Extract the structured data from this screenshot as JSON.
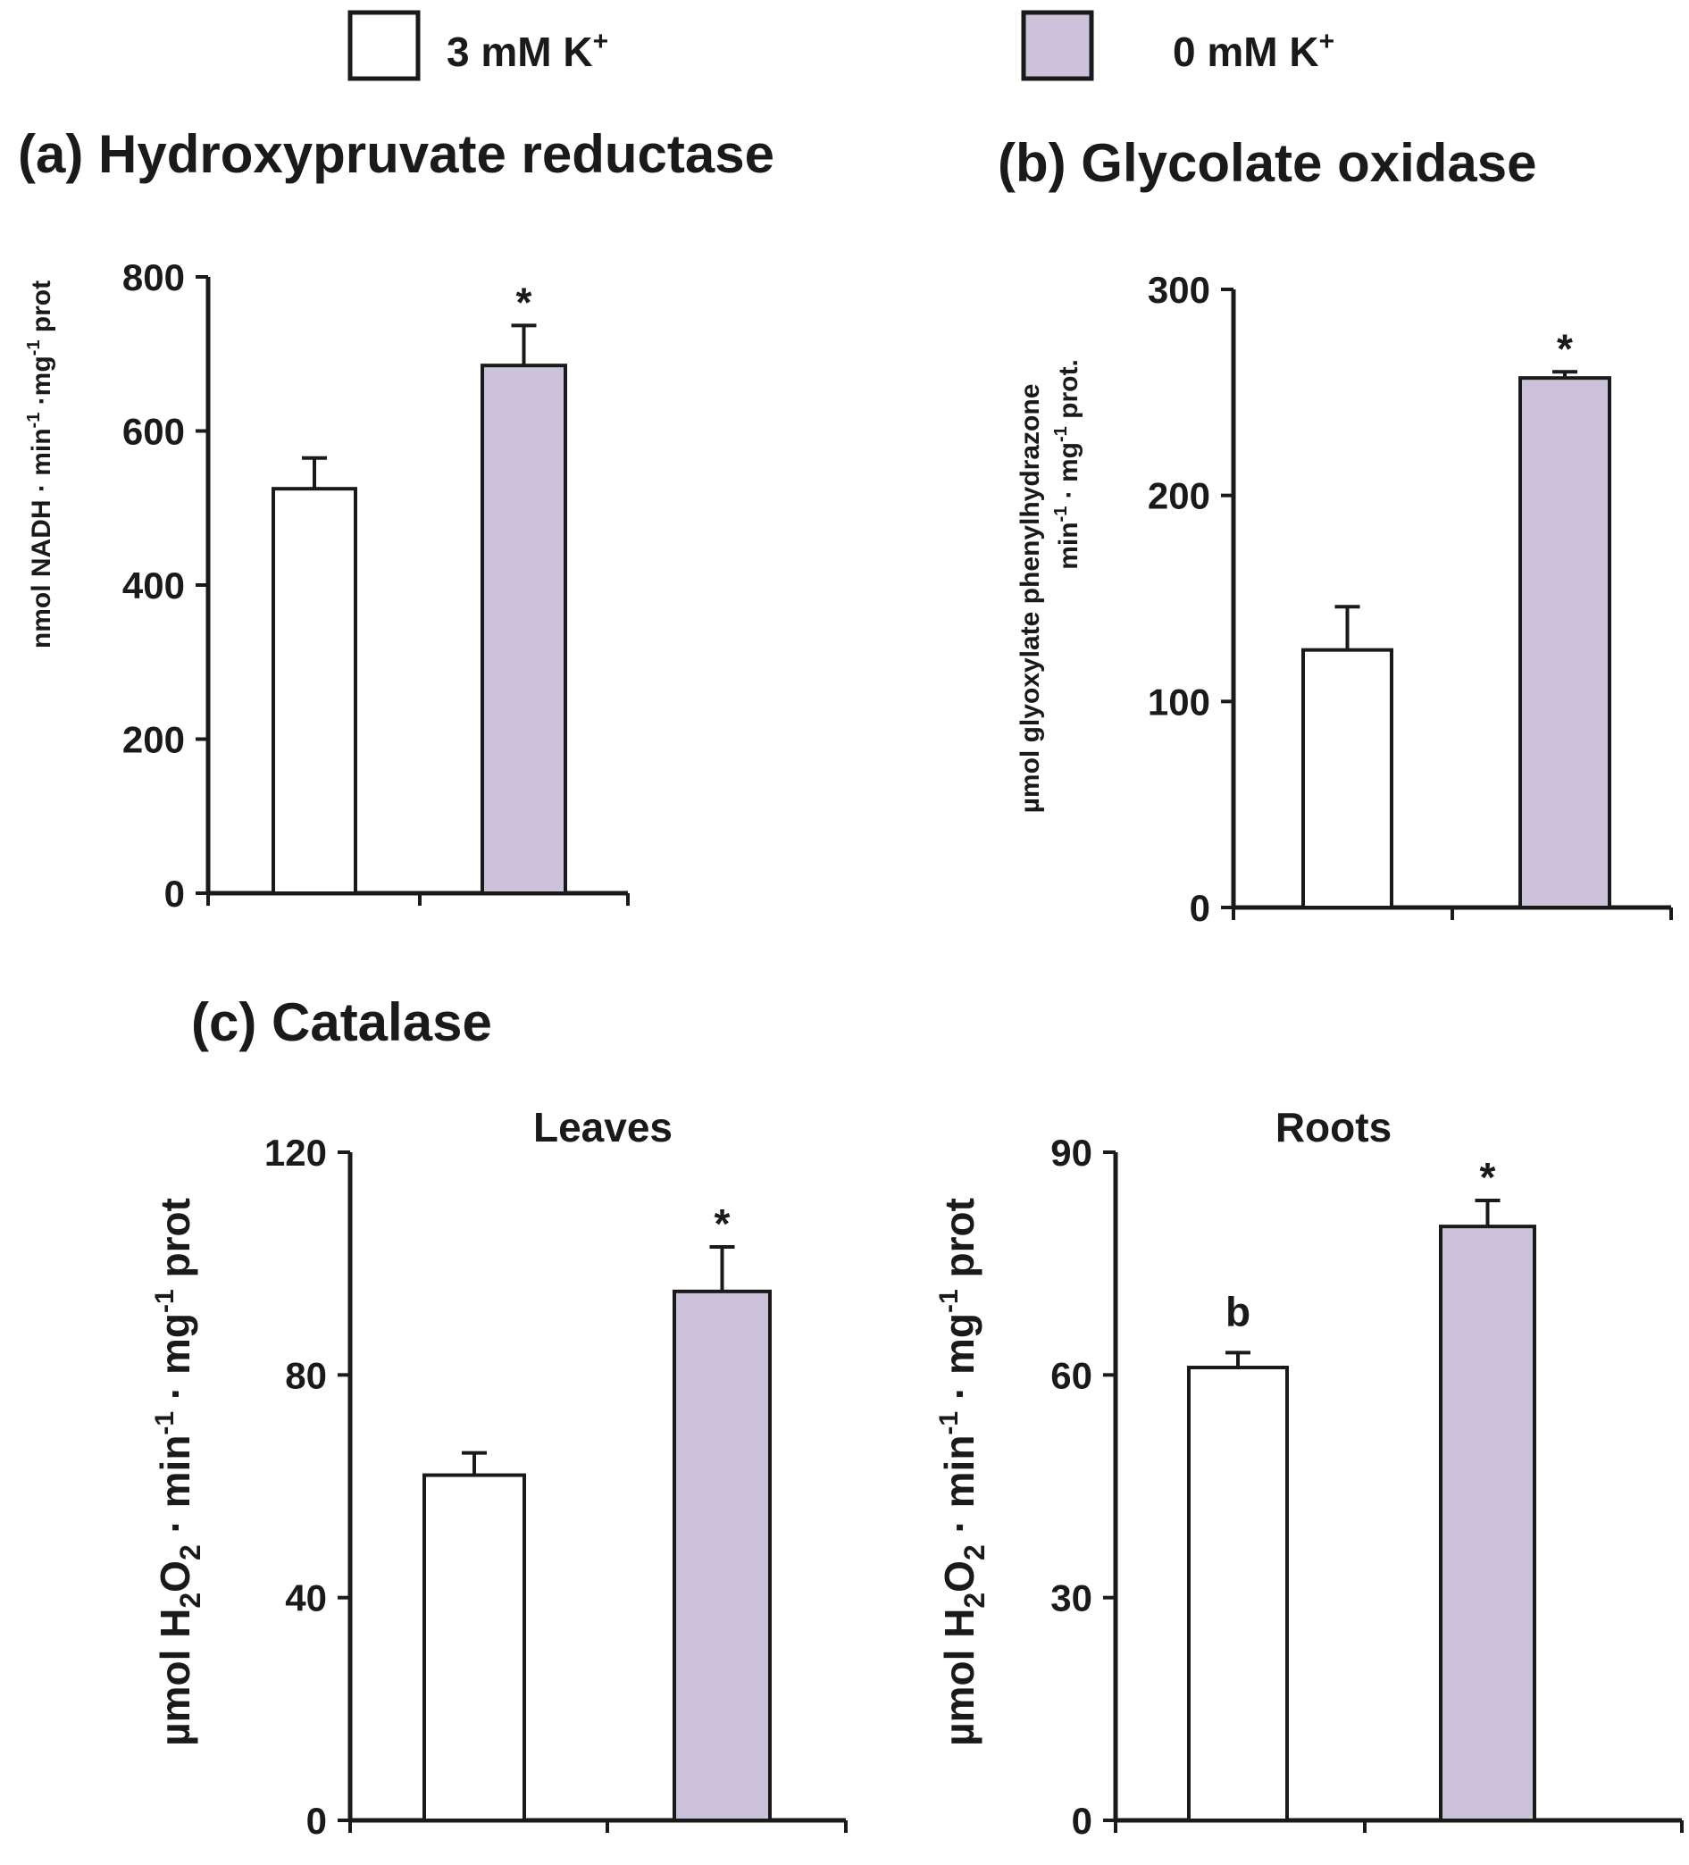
{
  "legend": [
    {
      "label": "3 mM K",
      "sup": "+",
      "color": "#ffffff"
    },
    {
      "label": "0 mM K",
      "sup": "+",
      "color": "#cdc2dc"
    }
  ],
  "colors": {
    "control": "#ffffff",
    "treatment": "#cdc2dc",
    "ink": "#1a1a1a"
  },
  "chart_data": [
    {
      "id": "a",
      "type": "bar",
      "title": "(a) Hydroxypruvate reductase",
      "subtitle": "",
      "ylabel": {
        "text": "nmol NADH · min",
        "sup1": "-1",
        "mid": " ·mg",
        "sup2": "-1",
        "end": " prot"
      },
      "ylim": [
        0,
        800
      ],
      "yticks": [
        0,
        200,
        400,
        600,
        800
      ],
      "grid": false,
      "series": [
        {
          "value": 525,
          "error": 40,
          "annotation": "",
          "color": "#ffffff"
        },
        {
          "value": 685,
          "error": 52,
          "annotation": "*",
          "color": "#cdc2dc"
        }
      ]
    },
    {
      "id": "b",
      "type": "bar",
      "title": "(b) Glycolate oxidase",
      "subtitle": "",
      "ylabel_lines": [
        "µmol glyoxylate phenylhydrazone",
        {
          "text": "min",
          "sup1": "-1",
          "mid": " · mg",
          "sup2": "-1",
          "end": " prot."
        }
      ],
      "ylim": [
        0,
        300
      ],
      "yticks": [
        0,
        100,
        200,
        300
      ],
      "grid": false,
      "series": [
        {
          "value": 125,
          "error": 21,
          "annotation": "",
          "color": "#ffffff"
        },
        {
          "value": 257,
          "error": 3,
          "annotation": "*",
          "color": "#cdc2dc"
        }
      ]
    },
    {
      "id": "c-leaves",
      "type": "bar",
      "title": "(c) Catalase",
      "subtitle": "Leaves",
      "ylabel": {
        "text": "µmol H",
        "sub": "2",
        "mid": "O",
        "sub2": "2",
        "end": " · min",
        "sup1": "-1",
        "end2": " · mg",
        "sup2": "-1",
        "end3": "  prot"
      },
      "ylim": [
        0,
        120
      ],
      "yticks": [
        0,
        40,
        80,
        120
      ],
      "grid": false,
      "series": [
        {
          "value": 62,
          "error": 4,
          "annotation": "",
          "color": "#ffffff"
        },
        {
          "value": 95,
          "error": 8,
          "annotation": "*",
          "color": "#cdc2dc"
        }
      ]
    },
    {
      "id": "c-roots",
      "type": "bar",
      "title": "",
      "subtitle": "Roots",
      "ylabel": {
        "text": "µmol H",
        "sub": "2",
        "mid": "O",
        "sub2": "2",
        "end": " · min",
        "sup1": "-1",
        "end2": " · mg",
        "sup2": "-1",
        "end3": "  prot"
      },
      "ylim": [
        0,
        90
      ],
      "yticks": [
        0,
        30,
        60,
        90
      ],
      "grid": false,
      "series": [
        {
          "value": 61,
          "error": 2,
          "annotation": "b",
          "color": "#ffffff"
        },
        {
          "value": 80,
          "error": 3.5,
          "annotation": "*",
          "color": "#cdc2dc"
        }
      ]
    }
  ]
}
